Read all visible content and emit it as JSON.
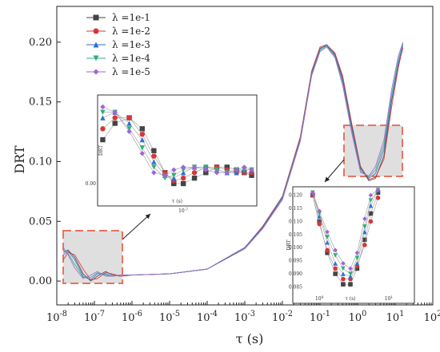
{
  "chart_data": {
    "type": "line",
    "xlabel": "τ (s)",
    "ylabel": "DRT",
    "x_scale": "log",
    "xlim": [
      1e-08,
      100
    ],
    "ylim": [
      -0.02,
      0.23
    ],
    "grid": false,
    "legend_position": "top-left",
    "x_ticks": [
      {
        "v": 1e-08,
        "base": "10",
        "exp": "-8"
      },
      {
        "v": 1e-07,
        "base": "10",
        "exp": "-7"
      },
      {
        "v": 1e-06,
        "base": "10",
        "exp": "-6"
      },
      {
        "v": 1e-05,
        "base": "10",
        "exp": "-5"
      },
      {
        "v": 0.0001,
        "base": "10",
        "exp": "-4"
      },
      {
        "v": 0.001,
        "base": "10",
        "exp": "-3"
      },
      {
        "v": 0.01,
        "base": "10",
        "exp": "-2"
      },
      {
        "v": 0.1,
        "base": "10",
        "exp": "-1"
      },
      {
        "v": 1,
        "base": "10",
        "exp": "0"
      },
      {
        "v": 10,
        "base": "10",
        "exp": "1"
      },
      {
        "v": 100,
        "base": "10",
        "exp": "2"
      }
    ],
    "y_ticks": [
      {
        "v": 0.0,
        "label": "0.00"
      },
      {
        "v": 0.05,
        "label": "0.05"
      },
      {
        "v": 0.1,
        "label": "0.10"
      },
      {
        "v": 0.15,
        "label": "0.15"
      },
      {
        "v": 0.2,
        "label": "0.20"
      }
    ],
    "series": [
      {
        "name": "λ =1e-1",
        "color": "#444444",
        "marker": "square",
        "x": [
          1.5e-08,
          2e-08,
          3e-08,
          5e-08,
          8e-08,
          1.2e-07,
          2e-07,
          3e-07,
          5e-07,
          1e-06,
          1e-05,
          0.0001,
          0.001,
          0.003,
          0.01,
          0.03,
          0.06,
          0.1,
          0.15,
          0.25,
          0.4,
          0.7,
          1.2,
          2,
          3,
          5,
          8,
          12,
          16
        ],
        "y": [
          0.024,
          0.026,
          0.02,
          0.006,
          0.0,
          0.004,
          0.008,
          0.005,
          0.004,
          0.005,
          0.006,
          0.01,
          0.028,
          0.045,
          0.07,
          0.12,
          0.175,
          0.195,
          0.197,
          0.19,
          0.17,
          0.13,
          0.095,
          0.084,
          0.086,
          0.105,
          0.15,
          0.18,
          0.195
        ]
      },
      {
        "name": "λ =1e-2",
        "color": "#d93535",
        "marker": "circle",
        "x": [
          1.5e-08,
          2e-08,
          3e-08,
          5e-08,
          8e-08,
          1.2e-07,
          2e-07,
          3e-07,
          5e-07,
          1e-06,
          1e-05,
          0.0001,
          0.001,
          0.003,
          0.01,
          0.03,
          0.06,
          0.1,
          0.15,
          0.25,
          0.4,
          0.7,
          1.2,
          2,
          3,
          5,
          8,
          12,
          16
        ],
        "y": [
          0.018,
          0.024,
          0.022,
          0.01,
          0.001,
          0.002,
          0.007,
          0.006,
          0.004,
          0.005,
          0.006,
          0.01,
          0.028,
          0.046,
          0.071,
          0.121,
          0.176,
          0.196,
          0.198,
          0.191,
          0.172,
          0.132,
          0.096,
          0.085,
          0.087,
          0.102,
          0.145,
          0.178,
          0.196
        ]
      },
      {
        "name": "λ =1e-3",
        "color": "#2f6fd6",
        "marker": "triangle-up",
        "x": [
          1.5e-08,
          2e-08,
          3e-08,
          5e-08,
          8e-08,
          1.2e-07,
          2e-07,
          3e-07,
          5e-07,
          1e-06,
          1e-05,
          0.0001,
          0.001,
          0.003,
          0.01,
          0.03,
          0.06,
          0.1,
          0.15,
          0.25,
          0.4,
          0.7,
          1.2,
          2,
          3,
          5,
          8,
          12,
          16
        ],
        "y": [
          0.022,
          0.025,
          0.018,
          0.004,
          0.001,
          0.006,
          0.006,
          0.004,
          0.005,
          0.005,
          0.006,
          0.01,
          0.028,
          0.045,
          0.07,
          0.119,
          0.174,
          0.194,
          0.198,
          0.189,
          0.168,
          0.128,
          0.094,
          0.086,
          0.09,
          0.11,
          0.152,
          0.182,
          0.198
        ]
      },
      {
        "name": "λ =1e-4",
        "color": "#2fae7a",
        "marker": "triangle-down",
        "x": [
          1.5e-08,
          2e-08,
          3e-08,
          5e-08,
          8e-08,
          1.2e-07,
          2e-07,
          3e-07,
          5e-07,
          1e-06,
          1e-05,
          0.0001,
          0.001,
          0.003,
          0.01,
          0.03,
          0.06,
          0.1,
          0.15,
          0.25,
          0.4,
          0.7,
          1.2,
          2,
          3,
          5,
          8,
          12,
          16
        ],
        "y": [
          0.026,
          0.023,
          0.014,
          0.003,
          0.003,
          0.007,
          0.005,
          0.004,
          0.005,
          0.005,
          0.006,
          0.01,
          0.027,
          0.044,
          0.069,
          0.118,
          0.173,
          0.193,
          0.197,
          0.188,
          0.166,
          0.126,
          0.092,
          0.087,
          0.093,
          0.114,
          0.156,
          0.185,
          0.199
        ]
      },
      {
        "name": "λ =1e-5",
        "color": "#a463d6",
        "marker": "diamond",
        "x": [
          1.5e-08,
          2e-08,
          3e-08,
          5e-08,
          8e-08,
          1.2e-07,
          2e-07,
          3e-07,
          5e-07,
          1e-06,
          1e-05,
          0.0001,
          0.001,
          0.003,
          0.01,
          0.03,
          0.06,
          0.1,
          0.15,
          0.25,
          0.4,
          0.7,
          1.2,
          2,
          3,
          5,
          8,
          12,
          16
        ],
        "y": [
          0.028,
          0.022,
          0.011,
          0.002,
          0.005,
          0.008,
          0.004,
          0.004,
          0.005,
          0.005,
          0.006,
          0.01,
          0.027,
          0.044,
          0.068,
          0.117,
          0.172,
          0.192,
          0.196,
          0.187,
          0.164,
          0.124,
          0.091,
          0.088,
          0.096,
          0.118,
          0.16,
          0.188,
          0.2
        ]
      }
    ],
    "inset_left": {
      "x_tick_label": {
        "base": "10",
        "exp": "-7"
      },
      "x_axis_label": "τ  (s)",
      "y_axis_label": "DRT",
      "y_tick_label": "0.00",
      "x": [
        1.5e-08,
        2e-08,
        2.8e-08,
        3.8e-08,
        5e-08,
        6.5e-08,
        8e-08,
        1e-07,
        1.3e-07,
        1.7e-07,
        2.2e-07,
        2.8e-07,
        3.5e-07,
        4.2e-07,
        5e-07
      ],
      "series": [
        [
          0.016,
          0.022,
          0.024,
          0.02,
          0.012,
          0.004,
          0.0,
          0.0,
          0.002,
          0.004,
          0.006,
          0.006,
          0.005,
          0.004,
          0.003
        ],
        [
          0.02,
          0.024,
          0.024,
          0.018,
          0.01,
          0.004,
          0.001,
          0.002,
          0.004,
          0.006,
          0.006,
          0.005,
          0.004,
          0.004,
          0.004
        ],
        [
          0.024,
          0.026,
          0.022,
          0.016,
          0.008,
          0.003,
          0.002,
          0.004,
          0.006,
          0.006,
          0.005,
          0.004,
          0.004,
          0.005,
          0.005
        ],
        [
          0.026,
          0.026,
          0.02,
          0.013,
          0.006,
          0.002,
          0.003,
          0.005,
          0.006,
          0.006,
          0.005,
          0.004,
          0.005,
          0.005,
          0.005
        ],
        [
          0.028,
          0.026,
          0.019,
          0.011,
          0.004,
          0.003,
          0.005,
          0.006,
          0.006,
          0.005,
          0.004,
          0.004,
          0.005,
          0.006,
          0.005
        ]
      ]
    },
    "inset_right": {
      "x_tick_labels": [
        {
          "base": "10",
          "exp": "0"
        },
        {
          "base": "10",
          "exp": "1"
        }
      ],
      "x_axis_label": "τ  (s)",
      "y_axis_label": "DRT",
      "y_tick_labels": [
        "0.120",
        "0.115",
        "0.110",
        "0.105",
        "0.100",
        "0.095",
        "0.090",
        "0.085"
      ],
      "ylim": [
        0.083,
        0.122
      ],
      "xlim": [
        0.6,
        20
      ],
      "x": [
        0.8,
        1.0,
        1.3,
        1.7,
        2.2,
        2.8,
        3.5,
        4.5,
        5.5,
        7
      ],
      "series": [
        [
          0.12,
          0.11,
          0.098,
          0.09,
          0.086,
          0.086,
          0.092,
          0.103,
          0.113,
          0.121
        ],
        [
          0.12,
          0.109,
          0.099,
          0.092,
          0.088,
          0.088,
          0.093,
          0.101,
          0.11,
          0.119
        ],
        [
          0.121,
          0.112,
          0.102,
          0.094,
          0.09,
          0.089,
          0.094,
          0.106,
          0.116,
          0.122
        ],
        [
          0.121,
          0.113,
          0.104,
          0.097,
          0.092,
          0.09,
          0.096,
          0.108,
          0.118,
          0.122
        ],
        [
          0.121,
          0.114,
          0.106,
          0.099,
          0.094,
          0.092,
          0.098,
          0.111,
          0.12,
          0.122
        ]
      ]
    }
  }
}
